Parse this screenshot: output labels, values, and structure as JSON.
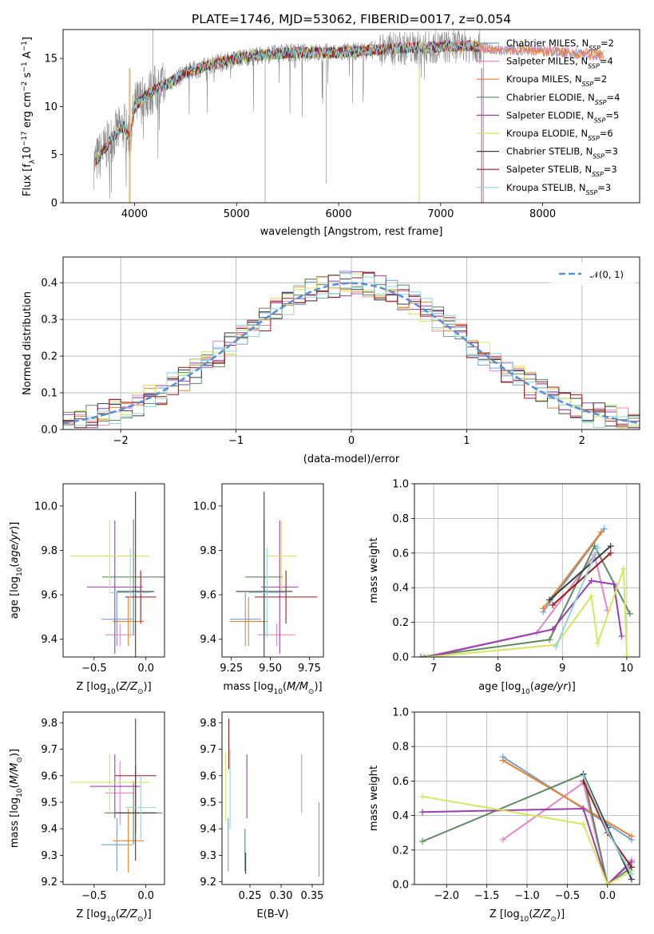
{
  "figure": {
    "title": "PLATE=1746, MJD=53062, FIBERID=0017, z=0.054"
  },
  "colors": {
    "cmiles": "#6f9fd8",
    "smiles": "#e587c1",
    "kmiles": "#e8822b",
    "celodie": "#5f8a5f",
    "selodie": "#9a3fb0",
    "kelodie": "#d4e85a",
    "cstelib": "#3b3b3b",
    "sstelib": "#9e1b1b",
    "kstelib": "#8fd6dc",
    "data": "#8a8a8a",
    "gauss": "#5b8fd6",
    "grid": "#b0b0b0"
  },
  "chart_data": [
    {
      "id": "spectrum",
      "type": "line",
      "xlabel": "wavelength [Angstrom, rest frame]",
      "ylabel": "Flux [f_λ10^-17 erg cm^-2 s^-1 A^-1]",
      "xlim": [
        3300,
        8950
      ],
      "ylim": [
        0,
        18
      ],
      "xticks": [
        4000,
        5000,
        6000,
        7000,
        8000
      ],
      "yticks": [
        0,
        5,
        10,
        15
      ],
      "grid": false,
      "legend_position": "right",
      "legend": [
        {
          "label": "Chabrier MILES, N",
          "sub": "SSP",
          "n": "=2"
        },
        {
          "label": "Salpeter MILES, N",
          "sub": "SSP",
          "n": "=4"
        },
        {
          "label": "Kroupa MILES, N",
          "sub": "SSP",
          "n": "=2"
        },
        {
          "label": "Chabrier ELODIE, N",
          "sub": "SSP",
          "n": "=4"
        },
        {
          "label": "Salpeter ELODIE, N",
          "sub": "SSP",
          "n": "=5"
        },
        {
          "label": "Kroupa ELODIE, N",
          "sub": "SSP",
          "n": "=6"
        },
        {
          "label": "Chabrier STELIB, N",
          "sub": "SSP",
          "n": "=3"
        },
        {
          "label": "Salpeter STELIB, N",
          "sub": "SSP",
          "n": "=3"
        },
        {
          "label": "Kroupa STELIB, N",
          "sub": "SSP",
          "n": "=3"
        }
      ],
      "continuum_x": [
        3600,
        3700,
        3800,
        3900,
        3950,
        4000,
        4100,
        4200,
        4300,
        4500,
        4800,
        5100,
        5500,
        6000,
        6500,
        7000,
        7300,
        7500,
        8000,
        8500,
        8950
      ],
      "continuum_y": [
        4.0,
        5.5,
        7.0,
        8.0,
        6.5,
        10.0,
        11.0,
        11.8,
        12.2,
        13.5,
        14.5,
        15.2,
        15.6,
        15.6,
        16.0,
        16.2,
        16.3,
        16.0,
        15.8,
        15.4,
        15.0
      ]
    },
    {
      "id": "residuals",
      "type": "area",
      "xlabel": "(data-model)/error",
      "ylabel": "Normed distribution",
      "xlim": [
        -2.5,
        2.5
      ],
      "ylim": [
        0,
        0.47
      ],
      "xticks": [
        -2,
        -1,
        0,
        1,
        2
      ],
      "yticks": [
        0.0,
        0.1,
        0.2,
        0.3,
        0.4
      ],
      "grid": true,
      "legend_position": "upper right",
      "legend_label": "𝒩(0, 1)",
      "bin_width": 0.1
    },
    {
      "id": "age_vs_Z",
      "type": "scatter",
      "xlabel": "Z [log10(Z/Z⊙)]",
      "ylabel": "age  [log10(age/yr)]",
      "xlim": [
        -0.8,
        0.18
      ],
      "ylim": [
        9.32,
        10.1
      ],
      "xticks": [
        -0.5,
        0.0
      ],
      "yticks": [
        9.4,
        9.6,
        9.8,
        10.0
      ],
      "points": [
        {
          "s": "cmiles",
          "x": -0.28,
          "xe": 0.15,
          "y": 9.49,
          "ye": 0.12
        },
        {
          "s": "smiles",
          "x": -0.25,
          "xe": 0.14,
          "y": 9.42,
          "ye": 0.05
        },
        {
          "s": "kmiles",
          "x": -0.17,
          "xe": 0.15,
          "y": 9.48,
          "ye": 0.11
        },
        {
          "s": "celodie",
          "x": -0.12,
          "xe": 0.3,
          "y": 9.68,
          "ye": 0.26
        },
        {
          "s": "selodie",
          "x": -0.3,
          "xe": 0.27,
          "y": 9.635,
          "ye": 0.3
        },
        {
          "s": "kelodie",
          "x": -0.35,
          "xe": 0.38,
          "y": 9.775,
          "ye": 0.16
        },
        {
          "s": "cstelib",
          "x": -0.1,
          "xe": 0.18,
          "y": 9.615,
          "ye": 0.45
        },
        {
          "s": "sstelib",
          "x": -0.05,
          "xe": 0.15,
          "y": 9.59,
          "ye": 0.12
        },
        {
          "s": "kstelib",
          "x": -0.15,
          "xe": 0.2,
          "y": 9.61,
          "ye": 0.2
        }
      ]
    },
    {
      "id": "age_vs_mass",
      "type": "scatter",
      "xlabel": "mass [log10(M/M⊙)]",
      "ylabel": "",
      "xlim": [
        9.19,
        9.84
      ],
      "ylim": [
        9.32,
        10.1
      ],
      "xticks": [
        9.25,
        9.5,
        9.75
      ],
      "yticks": [
        9.4,
        9.6,
        9.8,
        10.0
      ],
      "points": [
        {
          "s": "cmiles",
          "x": 9.34,
          "xe": 0.1,
          "y": 9.49,
          "ye": 0.12
        },
        {
          "s": "smiles",
          "x": 9.54,
          "xe": 0.12,
          "y": 9.42,
          "ye": 0.05
        },
        {
          "s": "kmiles",
          "x": 9.36,
          "xe": 0.12,
          "y": 9.48,
          "ye": 0.11
        },
        {
          "s": "celodie",
          "x": 9.46,
          "xe": 0.12,
          "y": 9.68,
          "ye": 0.26
        },
        {
          "s": "selodie",
          "x": 9.56,
          "xe": 0.12,
          "y": 9.635,
          "ye": 0.3
        },
        {
          "s": "kelodie",
          "x": 9.57,
          "xe": 0.1,
          "y": 9.775,
          "ye": 0.16
        },
        {
          "s": "cstelib",
          "x": 9.46,
          "xe": 0.18,
          "y": 9.615,
          "ye": 0.45
        },
        {
          "s": "sstelib",
          "x": 9.6,
          "xe": 0.2,
          "y": 9.59,
          "ye": 0.12
        },
        {
          "s": "kstelib",
          "x": 9.48,
          "xe": 0.12,
          "y": 9.61,
          "ye": 0.2
        }
      ]
    },
    {
      "id": "weight_vs_age",
      "type": "line",
      "xlabel": "age  [log10(age/yr)]",
      "ylabel": "mass weight",
      "xlim": [
        6.7,
        10.2
      ],
      "ylim": [
        0,
        1
      ],
      "xticks": [
        7,
        8,
        9,
        10
      ],
      "yticks": [
        0.0,
        0.2,
        0.4,
        0.6,
        0.8,
        1.0
      ],
      "grid": true,
      "series": [
        {
          "s": "cmiles",
          "x": [
            8.7,
            9.65
          ],
          "y": [
            0.26,
            0.74
          ]
        },
        {
          "s": "smiles",
          "x": [
            6.85,
            8.6,
            9.5,
            9.7
          ],
          "y": [
            0.0,
            0.14,
            0.59,
            0.27
          ]
        },
        {
          "s": "kmiles",
          "x": [
            8.7,
            9.6
          ],
          "y": [
            0.28,
            0.72
          ]
        },
        {
          "s": "celodie",
          "x": [
            6.8,
            8.8,
            9.5,
            10.05
          ],
          "y": [
            0.0,
            0.1,
            0.64,
            0.25
          ]
        },
        {
          "s": "selodie",
          "x": [
            6.9,
            8.85,
            9.45,
            9.8,
            9.92
          ],
          "y": [
            0.0,
            0.16,
            0.44,
            0.42,
            0.12
          ]
        },
        {
          "s": "kelodie",
          "x": [
            6.9,
            8.9,
            9.45,
            9.55,
            9.95,
            10.0
          ],
          "y": [
            0.0,
            0.07,
            0.35,
            0.08,
            0.51,
            0.01
          ]
        },
        {
          "s": "cstelib",
          "x": [
            8.8,
            9.75
          ],
          "y": [
            0.33,
            0.64
          ]
        },
        {
          "s": "sstelib",
          "x": [
            8.85,
            9.75
          ],
          "y": [
            0.3,
            0.6
          ]
        },
        {
          "s": "kstelib",
          "x": [
            8.9,
            9.55
          ],
          "y": [
            0.06,
            0.63
          ]
        }
      ]
    },
    {
      "id": "mass_vs_Z",
      "type": "scatter",
      "xlabel": "Z [log10(Z/Z⊙)]",
      "ylabel": "mass [log10(M/M⊙)]",
      "xlim": [
        -0.8,
        0.18
      ],
      "ylim": [
        9.19,
        9.84
      ],
      "xticks": [
        -0.5,
        0.0
      ],
      "yticks": [
        9.2,
        9.3,
        9.4,
        9.5,
        9.6,
        9.7,
        9.8
      ],
      "points": [
        {
          "s": "cmiles",
          "x": -0.28,
          "xe": 0.15,
          "y": 9.34,
          "ye": 0.1
        },
        {
          "s": "smiles",
          "x": -0.25,
          "xe": 0.14,
          "y": 9.535,
          "ye": 0.12
        },
        {
          "s": "kmiles",
          "x": -0.17,
          "xe": 0.15,
          "y": 9.355,
          "ye": 0.12
        },
        {
          "s": "celodie",
          "x": -0.12,
          "xe": 0.28,
          "y": 9.46,
          "ye": 0.12
        },
        {
          "s": "selodie",
          "x": -0.3,
          "xe": 0.24,
          "y": 9.56,
          "ye": 0.12
        },
        {
          "s": "kelodie",
          "x": -0.35,
          "xe": 0.38,
          "y": 9.575,
          "ye": 0.11
        },
        {
          "s": "cstelib",
          "x": -0.1,
          "xe": 0.2,
          "y": 9.46,
          "ye": 0.18
        },
        {
          "s": "sstelib",
          "x": -0.1,
          "xe": 0.2,
          "y": 9.6,
          "ye": 0.215
        },
        {
          "s": "kstelib",
          "x": -0.05,
          "xe": 0.15,
          "y": 9.48,
          "ye": 0.12
        }
      ]
    },
    {
      "id": "mass_vs_ebv",
      "type": "scatter",
      "xlabel": "E(B-V)",
      "ylabel": "",
      "xlim": [
        0.205,
        0.368
      ],
      "ylim": [
        9.19,
        9.84
      ],
      "xticks": [
        0.25,
        0.3,
        0.35
      ],
      "yticks": [
        9.2,
        9.3,
        9.4,
        9.5,
        9.6,
        9.7,
        9.8
      ],
      "points": [
        {
          "s": "cmiles",
          "x": 0.215,
          "xe": 0,
          "y": 9.34,
          "ye": 0.1
        },
        {
          "s": "smiles",
          "x": 0.333,
          "xe": 0,
          "y": 9.57,
          "ye": 0.11
        },
        {
          "s": "kmiles",
          "x": 0.361,
          "xe": 0,
          "y": 9.36,
          "ye": 0.14
        },
        {
          "s": "celodie",
          "x": 0.242,
          "xe": 0,
          "y": 9.32,
          "ye": 0.08
        },
        {
          "s": "selodie",
          "x": 0.245,
          "xe": 0,
          "y": 9.56,
          "ye": 0.12
        },
        {
          "s": "kelodie",
          "x": 0.211,
          "xe": 0,
          "y": 9.56,
          "ye": 0.13
        },
        {
          "s": "cstelib",
          "x": 0.243,
          "xe": 0,
          "y": 9.27,
          "ye": 0.04
        },
        {
          "s": "sstelib",
          "x": 0.216,
          "xe": 0,
          "y": 9.72,
          "ye": 0.095
        },
        {
          "s": "kstelib",
          "x": 0.218,
          "xe": 0,
          "y": 9.55,
          "ye": 0.15
        }
      ]
    },
    {
      "id": "weight_vs_Z",
      "type": "line",
      "xlabel": "Z [log10(Z/Z⊙)]",
      "ylabel": "mass weight",
      "xlim": [
        -2.4,
        0.4
      ],
      "ylim": [
        0,
        1
      ],
      "xticks": [
        -2.0,
        -1.5,
        -1.0,
        -0.5,
        0.0
      ],
      "yticks": [
        0.0,
        0.2,
        0.4,
        0.6,
        0.8,
        1.0
      ],
      "grid": true,
      "series": [
        {
          "s": "cmiles",
          "x": [
            -1.3,
            0.3
          ],
          "y": [
            0.74,
            0.26
          ]
        },
        {
          "s": "smiles",
          "x": [
            -1.3,
            -0.3,
            0.0,
            0.3
          ],
          "y": [
            0.26,
            0.59,
            0.0,
            0.14
          ]
        },
        {
          "s": "kmiles",
          "x": [
            -1.3,
            0.3
          ],
          "y": [
            0.72,
            0.28
          ]
        },
        {
          "s": "celodie",
          "x": [
            -2.3,
            -0.3,
            0.0,
            0.3
          ],
          "y": [
            0.25,
            0.64,
            0.0,
            0.1
          ]
        },
        {
          "s": "selodie",
          "x": [
            -2.3,
            -0.3,
            0.0,
            0.3
          ],
          "y": [
            0.42,
            0.44,
            0.0,
            0.13
          ]
        },
        {
          "s": "kelodie",
          "x": [
            -2.3,
            -0.3,
            0.0,
            0.3
          ],
          "y": [
            0.51,
            0.35,
            0.0,
            0.08
          ]
        },
        {
          "s": "cstelib",
          "x": [
            -0.3,
            0.0,
            0.3
          ],
          "y": [
            0.64,
            0.33,
            0.03
          ]
        },
        {
          "s": "sstelib",
          "x": [
            -0.3,
            0.0,
            0.3
          ],
          "y": [
            0.6,
            0.3,
            0.1
          ]
        },
        {
          "s": "kstelib",
          "x": [
            -0.3,
            0.0,
            0.3
          ],
          "y": [
            0.63,
            0.31,
            0.06
          ]
        }
      ]
    }
  ]
}
